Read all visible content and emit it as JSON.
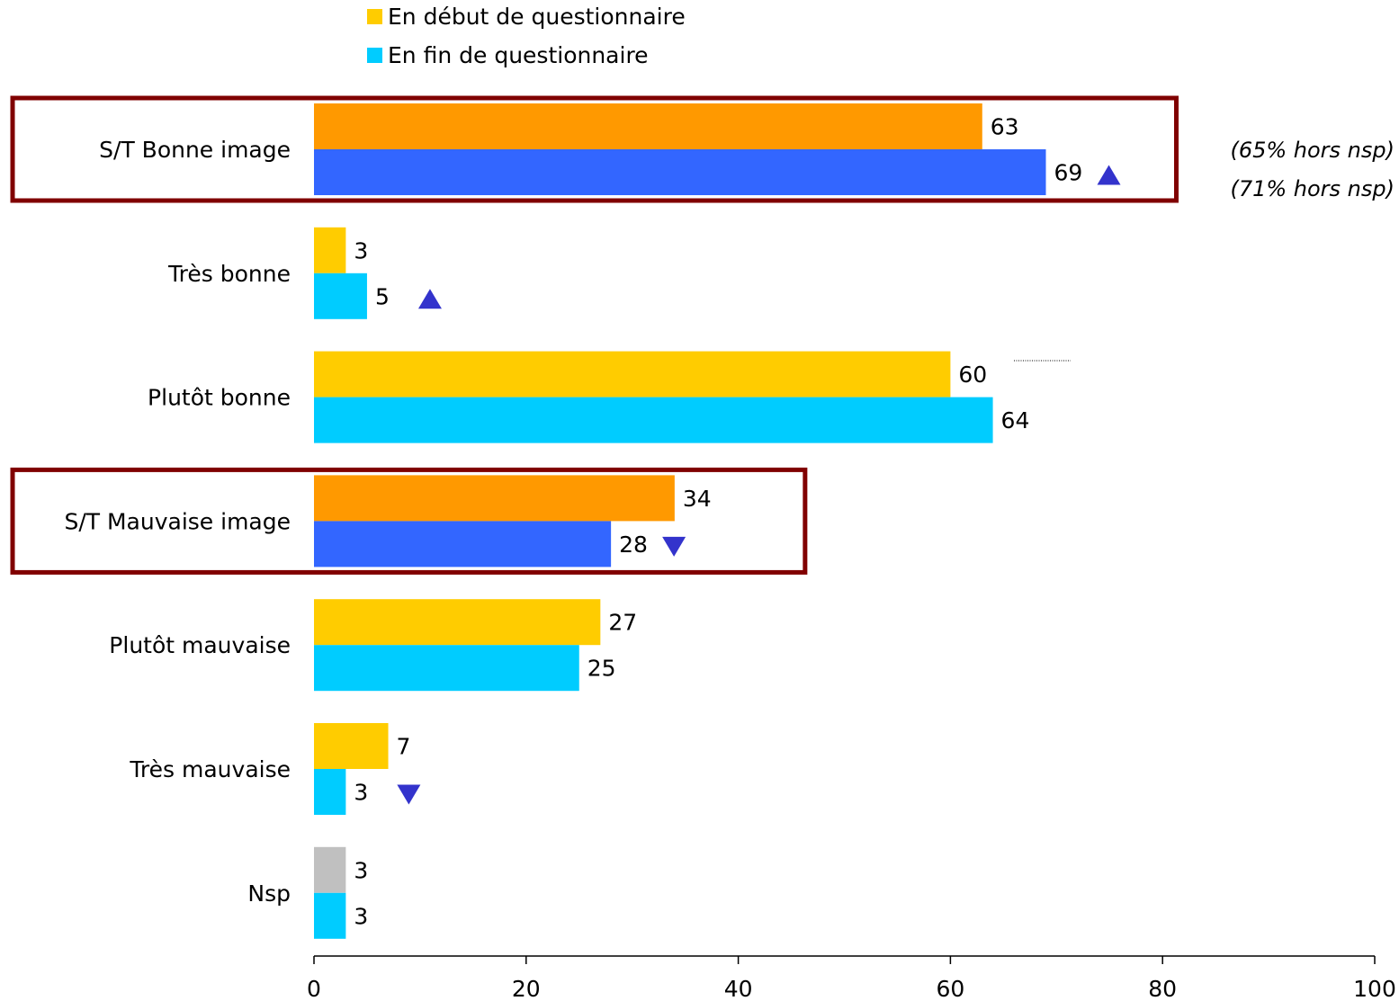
{
  "chart_data": {
    "type": "bar",
    "orientation": "horizontal",
    "categories": [
      "S/T Bonne image",
      "Très bonne",
      "Plutôt bonne",
      "S/T Mauvaise image",
      "Plutôt mauvaise",
      "Très mauvaise",
      "Nsp"
    ],
    "series": [
      {
        "name": "En début de questionnaire",
        "values": [
          63,
          3,
          60,
          34,
          27,
          7,
          3
        ]
      },
      {
        "name": "En fin de questionnaire",
        "values": [
          69,
          5,
          64,
          28,
          25,
          3,
          3
        ]
      }
    ],
    "xlim": [
      0,
      100
    ],
    "xticks": [
      0,
      20,
      40,
      60,
      80,
      100
    ],
    "legend_position": "top",
    "highlighted_categories": [
      "S/T Bonne image",
      "S/T Mauvaise image"
    ],
    "trend_markers": [
      {
        "category": "S/T Bonne image",
        "series": "En fin de questionnaire",
        "direction": "up"
      },
      {
        "category": "Très bonne",
        "series": "En fin de questionnaire",
        "direction": "up"
      },
      {
        "category": "S/T Mauvaise image",
        "series": "En fin de questionnaire",
        "direction": "down"
      },
      {
        "category": "Très mauvaise",
        "series": "En fin de questionnaire",
        "direction": "down"
      }
    ],
    "annotations": [
      "(65% hors nsp)",
      "(71% hors nsp)"
    ],
    "colors": {
      "series_start": "#FFCC00",
      "series_end": "#00CCFF",
      "subtotal_start": "#FF9900",
      "subtotal_end": "#3366FF",
      "nsp_start": "#C0C0C0",
      "highlight_frame": "#800000",
      "marker": "#3333CC"
    }
  }
}
